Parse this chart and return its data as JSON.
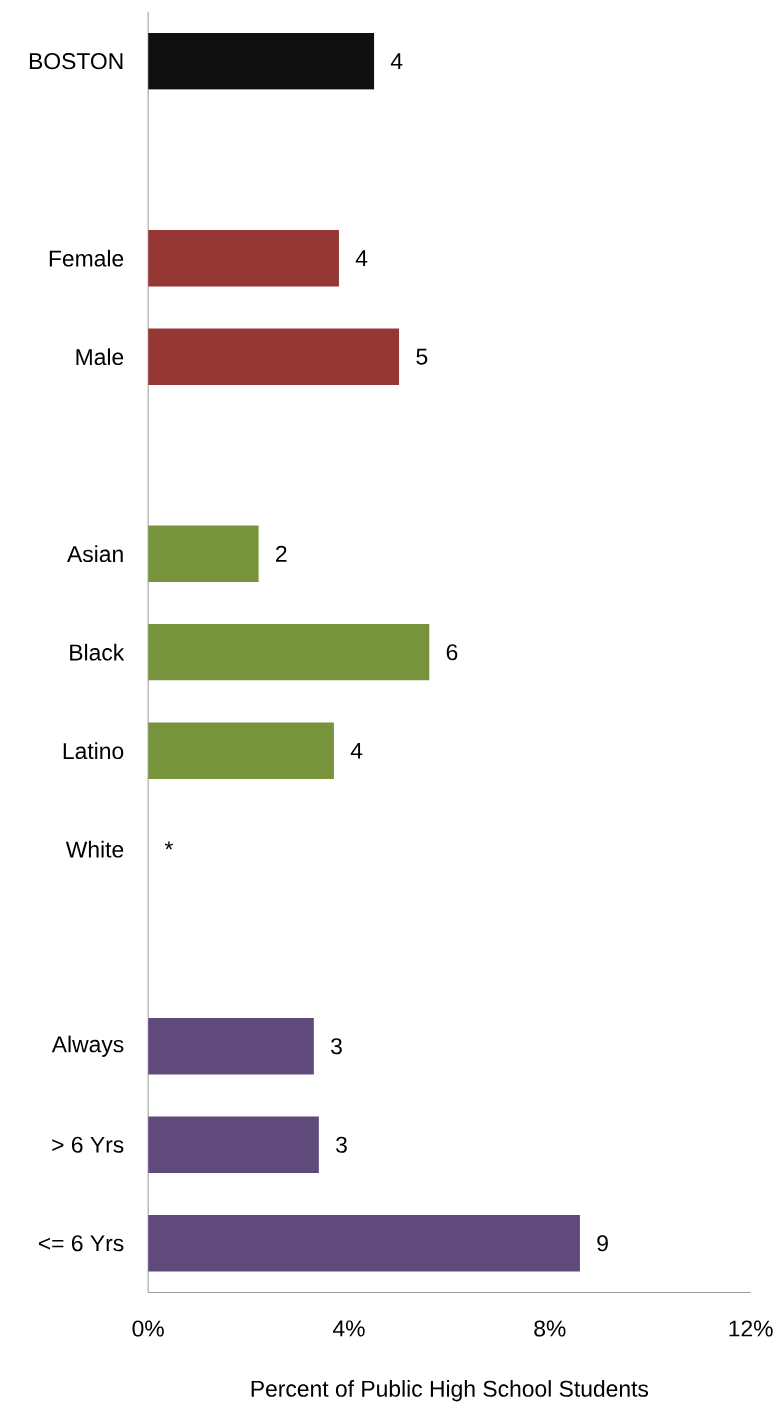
{
  "chart_data": {
    "type": "bar",
    "orientation": "horizontal",
    "categories": [
      "BOSTON",
      null,
      "Female",
      "Male",
      null,
      "Asian",
      "Black",
      "Latino",
      "White",
      null,
      "Always",
      "> 6 Yrs",
      "<= 6 Yrs"
    ],
    "values": [
      4.5,
      null,
      3.8,
      5.0,
      null,
      2.2,
      5.6,
      3.7,
      null,
      null,
      3.3,
      3.4,
      8.6
    ],
    "colors": [
      "#0f0f0f",
      null,
      "#943735",
      "#943735",
      null,
      "#77933c",
      "#77933c",
      "#77933c",
      null,
      null,
      "#604a7b",
      "#604a7b",
      "#604a7b"
    ],
    "value_labels": [
      "4",
      null,
      "4",
      "5",
      null,
      "2",
      "6",
      "4",
      "*",
      null,
      "3",
      "3",
      "9"
    ],
    "xlim": [
      0,
      12
    ],
    "xticks": [
      {
        "value": 0,
        "label": "0%"
      },
      {
        "value": 4,
        "label": "4%"
      },
      {
        "value": 8,
        "label": "8%"
      },
      {
        "value": 12,
        "label": "12%"
      }
    ],
    "xlabel": "Percent of Public High School Students"
  }
}
